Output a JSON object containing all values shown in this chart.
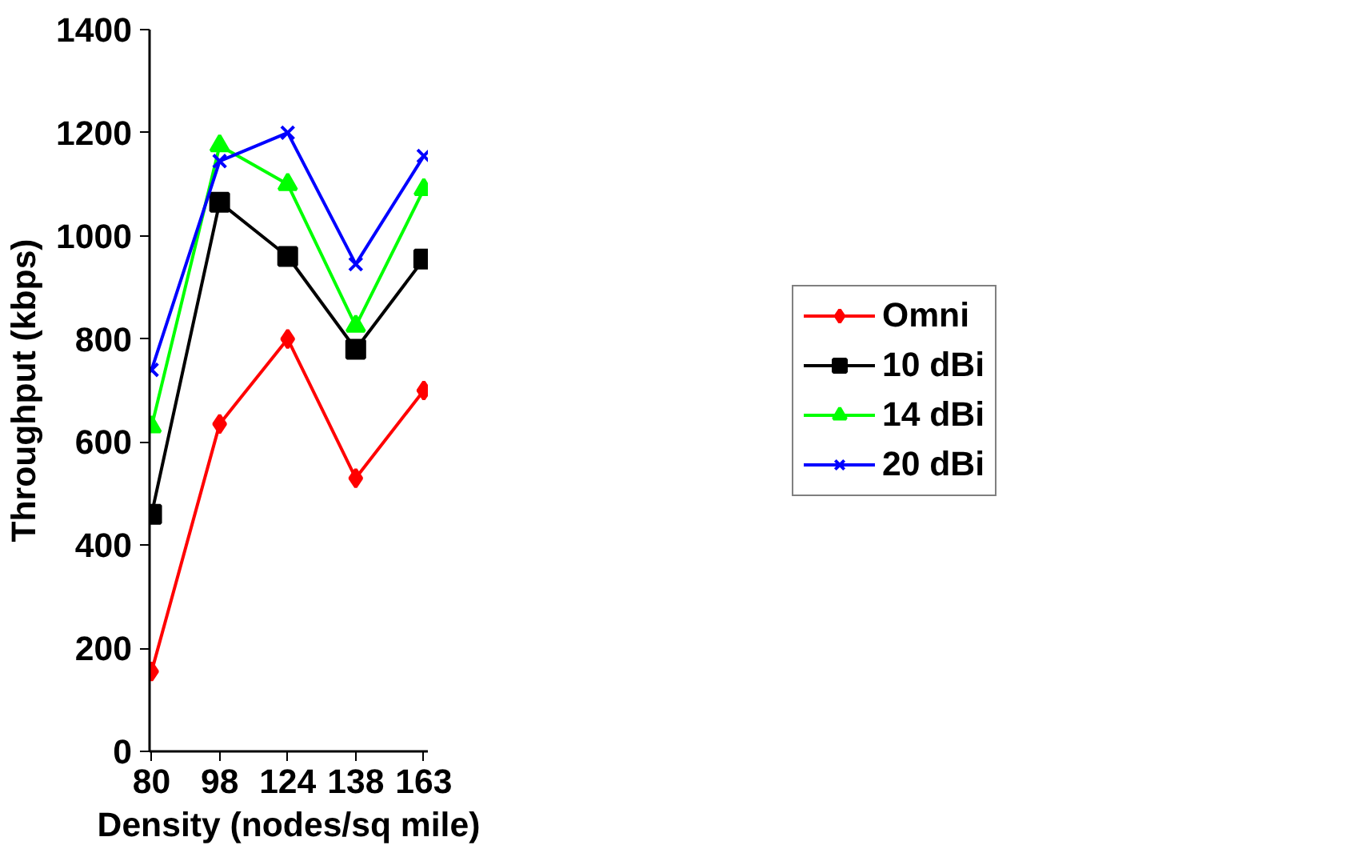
{
  "chart_data": {
    "type": "line",
    "xlabel": "Density (nodes/sq mile)",
    "ylabel": "Throughput (kbps)",
    "categories": [
      "80",
      "98",
      "124",
      "138",
      "163"
    ],
    "series": [
      {
        "name": "Omni",
        "color": "#ff0000",
        "marker": "diamond",
        "values": [
          155,
          635,
          800,
          530,
          700
        ]
      },
      {
        "name": "10 dBi",
        "color": "#000000",
        "marker": "square",
        "values": [
          460,
          1065,
          960,
          780,
          955
        ]
      },
      {
        "name": "14 dBi",
        "color": "#00ff00",
        "marker": "triangle",
        "values": [
          630,
          1175,
          1100,
          825,
          1090
        ]
      },
      {
        "name": "20 dBi",
        "color": "#0000ff",
        "marker": "cross",
        "values": [
          740,
          1145,
          1200,
          945,
          1155
        ]
      }
    ],
    "ylim": [
      0,
      1400
    ],
    "yticks": [
      0,
      200,
      400,
      600,
      800,
      1000,
      1200,
      1400
    ],
    "grid": false,
    "legend": "right",
    "line_style": "solid"
  }
}
